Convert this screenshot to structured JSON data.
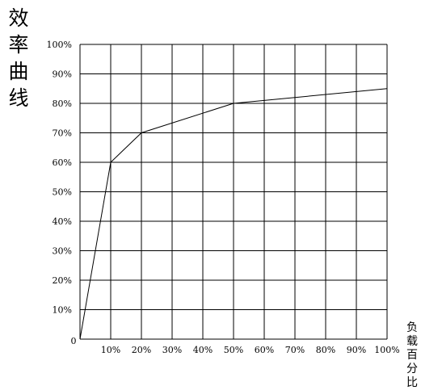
{
  "chart_data": {
    "type": "line",
    "title": "效率曲线",
    "xlabel": "负载百分比",
    "ylabel": "",
    "origin_label": "0",
    "x_tick_labels": [
      "10%",
      "20%",
      "30%",
      "40%",
      "50%",
      "60%",
      "70%",
      "80%",
      "90%",
      "100%"
    ],
    "y_tick_labels": [
      "10%",
      "20%",
      "30%",
      "40%",
      "50%",
      "60%",
      "70%",
      "80%",
      "90%",
      "100%"
    ],
    "xlim": [
      0,
      100
    ],
    "ylim": [
      0,
      100
    ],
    "grid": true,
    "legend": "none",
    "series": [
      {
        "x": [
          0,
          10,
          20,
          50,
          100
        ],
        "y": [
          0,
          60,
          70,
          80,
          85
        ]
      }
    ],
    "colors": {
      "line": "#000000",
      "grid": "#000000",
      "background": "#ffffff"
    }
  }
}
